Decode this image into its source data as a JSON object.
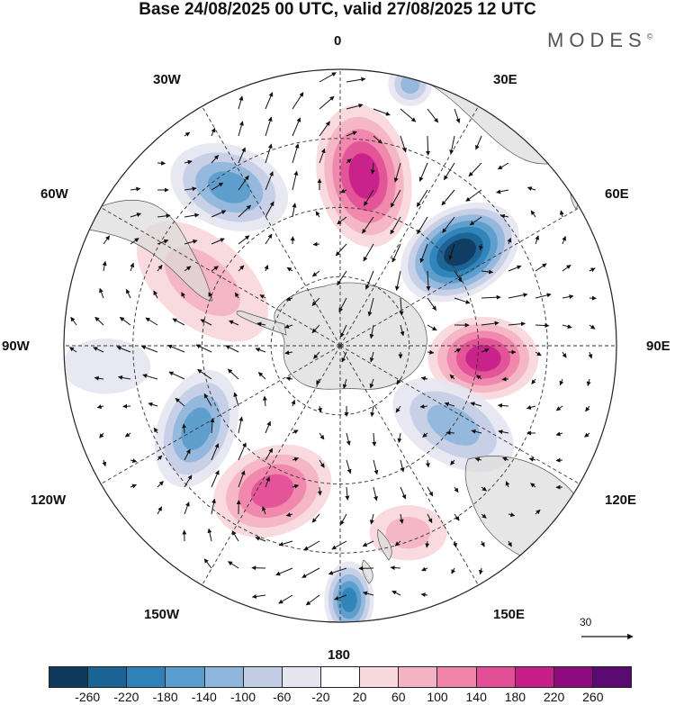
{
  "title": "Base 24/08/2025 00 UTC, valid 27/08/2025 12 UTC",
  "brand": "MODES",
  "brand_mark": "©",
  "longitudes": {
    "n0": "0",
    "n30e": "30E",
    "n60e": "60E",
    "n90e": "90E",
    "n120e": "120E",
    "n150e": "150E",
    "n180": "180",
    "n150w": "150W",
    "n120w": "120W",
    "n90w": "90W",
    "n60w": "60W",
    "n30w": "30W"
  },
  "vector_scale": {
    "label": "30"
  },
  "colorbar": {
    "labels": [
      "-260",
      "-220",
      "-180",
      "-140",
      "-100",
      "-60",
      "-20",
      "20",
      "60",
      "100",
      "140",
      "180",
      "220",
      "260"
    ],
    "colors": [
      "#0f3a5e",
      "#1b6394",
      "#2f82b8",
      "#5a9ccb",
      "#8fb6db",
      "#c4cde6",
      "#e6e6f1",
      "#ffffff",
      "#f8d8dc",
      "#f4b3c2",
      "#ef86aa",
      "#e24f97",
      "#c71e89",
      "#8f0a7c",
      "#5a0a70"
    ]
  },
  "map_data": {
    "anomalies": [
      {
        "lon": 8,
        "colat": 0.62,
        "rx": 0.17,
        "ry": 0.26,
        "rot": -10,
        "value": 190
      },
      {
        "lon": -35,
        "colat": 0.7,
        "rx": 0.22,
        "ry": 0.15,
        "rot": 20,
        "value": -150
      },
      {
        "lon": 52,
        "colat": 0.55,
        "rx": 0.23,
        "ry": 0.16,
        "rot": -30,
        "value": -260
      },
      {
        "lon": 95,
        "colat": 0.52,
        "rx": 0.2,
        "ry": 0.15,
        "rot": 0,
        "value": 210
      },
      {
        "lon": 125,
        "colat": 0.5,
        "rx": 0.24,
        "ry": 0.14,
        "rot": 30,
        "value": -130
      },
      {
        "lon": -120,
        "colat": 0.6,
        "rx": 0.14,
        "ry": 0.22,
        "rot": 20,
        "value": -170
      },
      {
        "lon": -155,
        "colat": 0.58,
        "rx": 0.22,
        "ry": 0.16,
        "rot": -20,
        "value": 150
      },
      {
        "lon": 178,
        "colat": 0.92,
        "rx": 0.09,
        "ry": 0.14,
        "rot": 0,
        "value": -180
      },
      {
        "lon": -65,
        "colat": 0.55,
        "rx": 0.28,
        "ry": 0.16,
        "rot": 40,
        "value": 90
      },
      {
        "lon": 15,
        "colat": 0.98,
        "rx": 0.08,
        "ry": 0.08,
        "rot": 0,
        "value": -120
      },
      {
        "lon": -95,
        "colat": 0.85,
        "rx": 0.16,
        "ry": 0.1,
        "rot": 0,
        "value": -40
      },
      {
        "lon": 160,
        "colat": 0.72,
        "rx": 0.14,
        "ry": 0.1,
        "rot": 0,
        "value": 70
      }
    ]
  }
}
